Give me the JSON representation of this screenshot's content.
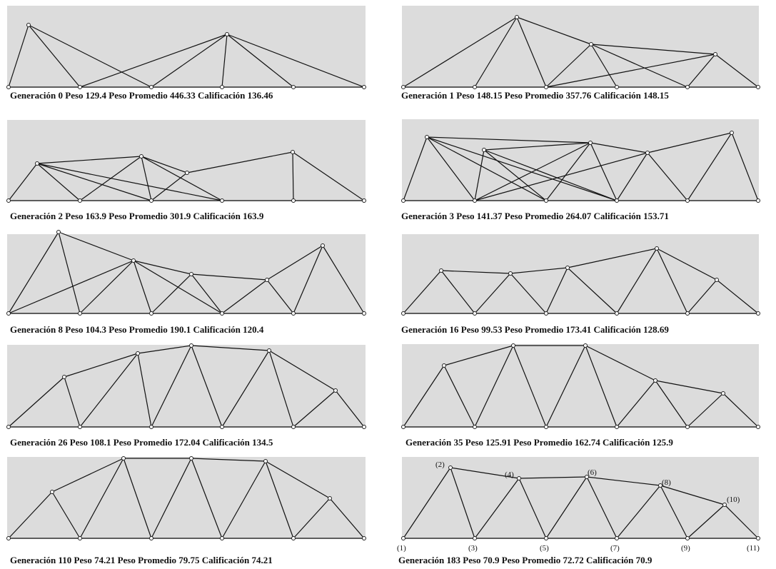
{
  "colors": {
    "panel_background": "#dcdcdc",
    "member": "#111111"
  },
  "panels": [
    {
      "caption": "Generación 0 Peso 129.4 Peso Promedio 446.33 Calificación 136.46"
    },
    {
      "caption": "Generación 1 Peso 148.15 Peso Promedio 357.76 Calificación 148.15"
    },
    {
      "caption": "Generación 2 Peso 163.9 Peso Promedio 301.9 Calificación 163.9"
    },
    {
      "caption": "Generación 3 Peso 141.37 Peso Promedio 264.07 Calificación 153.71"
    },
    {
      "caption": "Generación 8 Peso 104.3 Peso Promedio 190.1 Calificación 120.4"
    },
    {
      "caption": "Generación 16 Peso 99.53 Peso Promedio 173.41 Calificación 128.69"
    },
    {
      "caption": "Generación 26 Peso 108.1 Peso Promedio 172.04 Calificación 134.5"
    },
    {
      "caption": "Generación 35 Peso 125.91 Peso Promedio 162.74 Calificación 125.9"
    },
    {
      "caption": "Generación 110 Peso 74.21 Peso Promedio 79.75 Calificación 74.21"
    },
    {
      "caption": "Generación 183 Peso 70.9 Peso Promedio 72.72 Calificación 70.9"
    }
  ],
  "node_labels": [
    "(1)",
    "(2)",
    "(3)",
    "(4)",
    "(5)",
    "(6)",
    "(7)",
    "(8)",
    "(9)",
    "(10)",
    "(11)"
  ]
}
